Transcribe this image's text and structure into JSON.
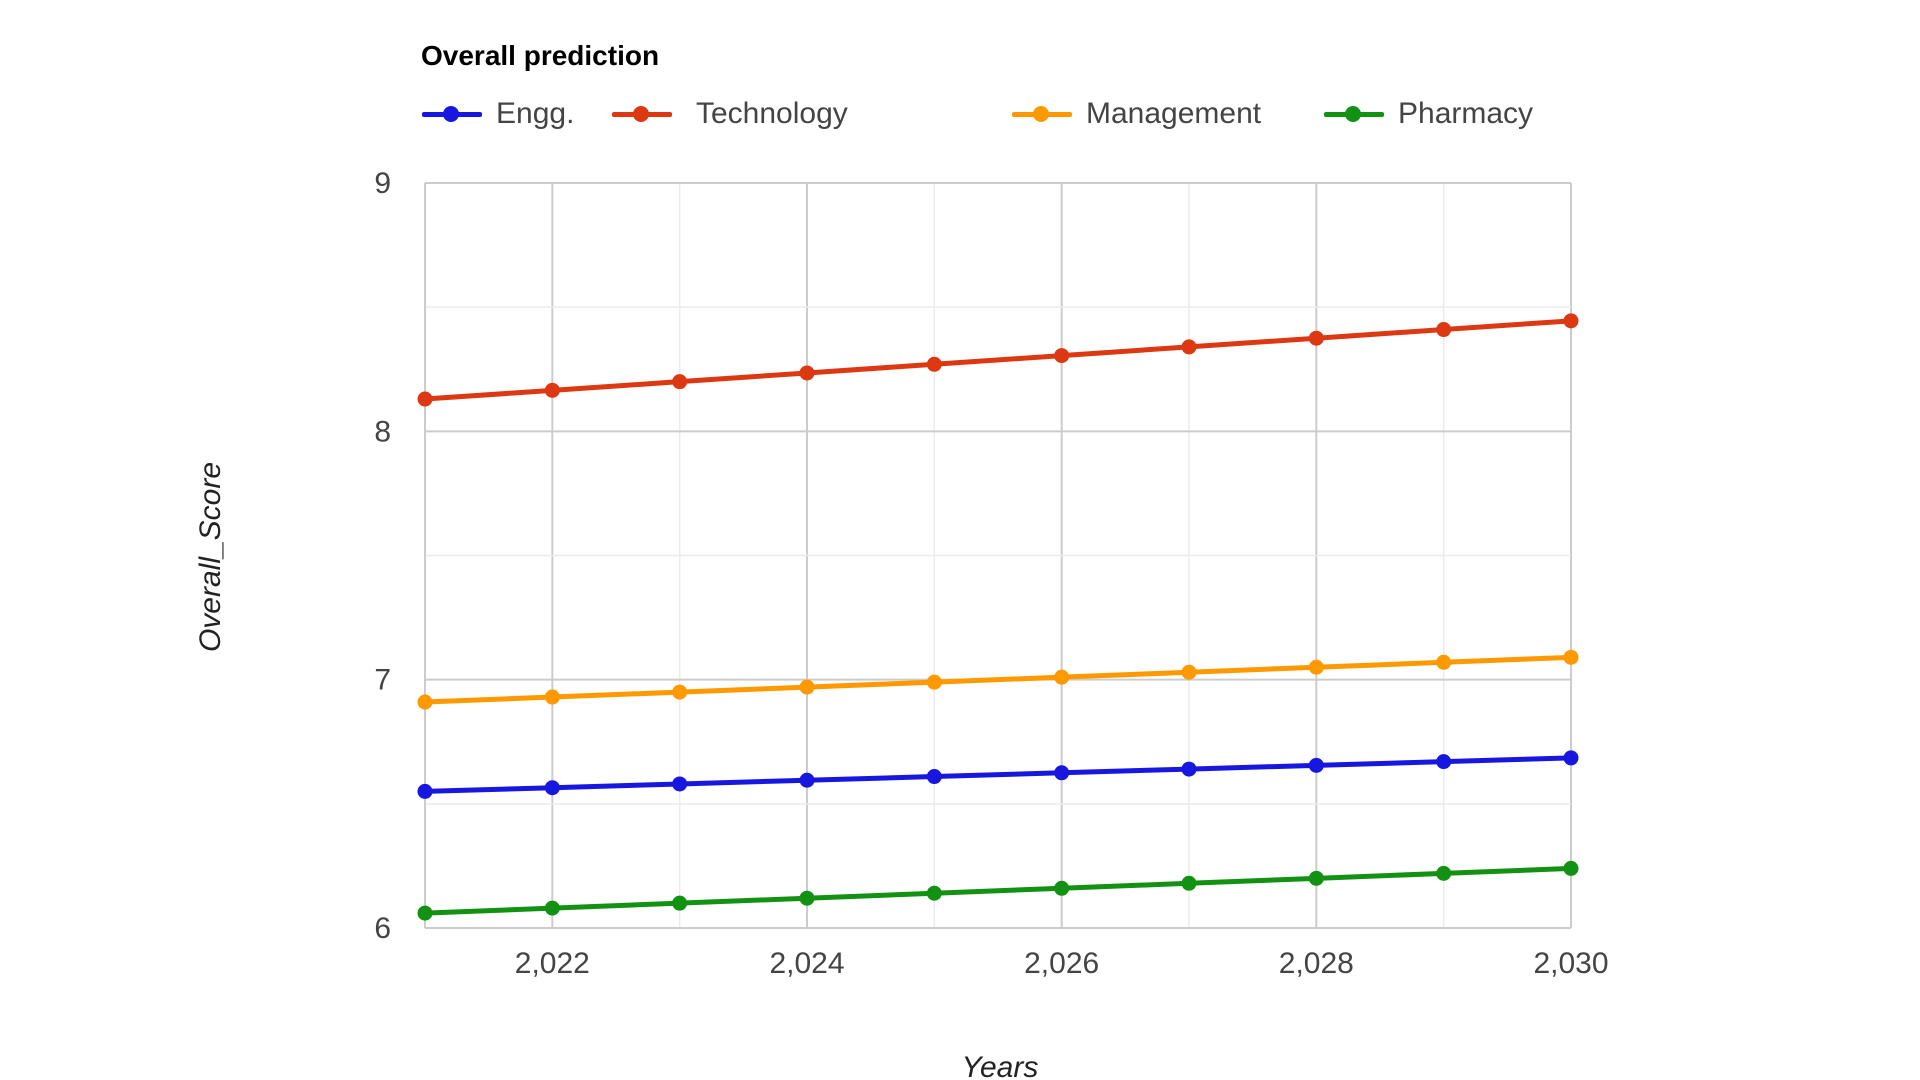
{
  "chart_data": {
    "type": "line",
    "title": "Overall prediction",
    "xlabel": "Years",
    "ylabel": "Overall_Score",
    "x": [
      2021,
      2022,
      2023,
      2024,
      2025,
      2026,
      2027,
      2028,
      2029,
      2030
    ],
    "xlim": [
      2021,
      2030
    ],
    "ylim": [
      6,
      9
    ],
    "x_ticks": [
      2022,
      2024,
      2026,
      2028,
      2030
    ],
    "x_tick_labels": [
      "2,022",
      "2,024",
      "2,026",
      "2,028",
      "2,030"
    ],
    "y_ticks": [
      6,
      7,
      8,
      9
    ],
    "y_tick_labels": [
      "6",
      "7",
      "8",
      "9"
    ],
    "grid": true,
    "legend_position": "top",
    "series": [
      {
        "name": "Engg.",
        "color": "#1717e0",
        "values": [
          6.55,
          6.565,
          6.58,
          6.595,
          6.61,
          6.625,
          6.64,
          6.655,
          6.67,
          6.685
        ]
      },
      {
        "name": "Technology",
        "color": "#dc3912",
        "values": [
          8.13,
          8.165,
          8.2,
          8.235,
          8.27,
          8.305,
          8.34,
          8.375,
          8.41,
          8.445
        ]
      },
      {
        "name": "Management",
        "color": "#ff9900",
        "values": [
          6.91,
          6.93,
          6.95,
          6.97,
          6.99,
          7.01,
          7.03,
          7.05,
          7.07,
          7.09
        ]
      },
      {
        "name": "Pharmacy",
        "color": "#139113",
        "values": [
          6.06,
          6.08,
          6.1,
          6.12,
          6.14,
          6.16,
          6.18,
          6.2,
          6.22,
          6.24
        ]
      }
    ]
  }
}
